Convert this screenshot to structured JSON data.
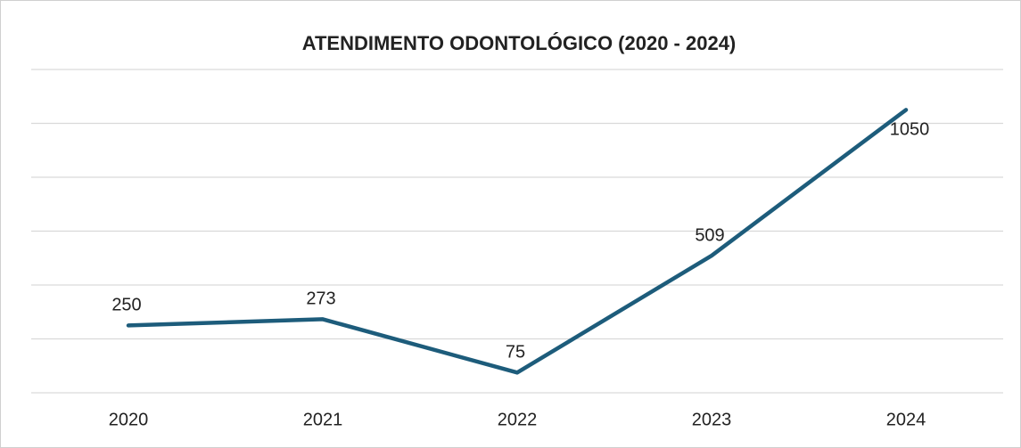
{
  "chart_data": {
    "type": "line",
    "title": "ATENDIMENTO ODONTOLÓGICO (2020 - 2024)",
    "categories": [
      "2020",
      "2021",
      "2022",
      "2023",
      "2024"
    ],
    "values": [
      250,
      273,
      75,
      509,
      1050
    ],
    "color": "#1d5c7b",
    "ylim": [
      0,
      1200
    ],
    "yticks": [
      0,
      200,
      400,
      600,
      800,
      1000,
      1200
    ],
    "grid": true
  }
}
